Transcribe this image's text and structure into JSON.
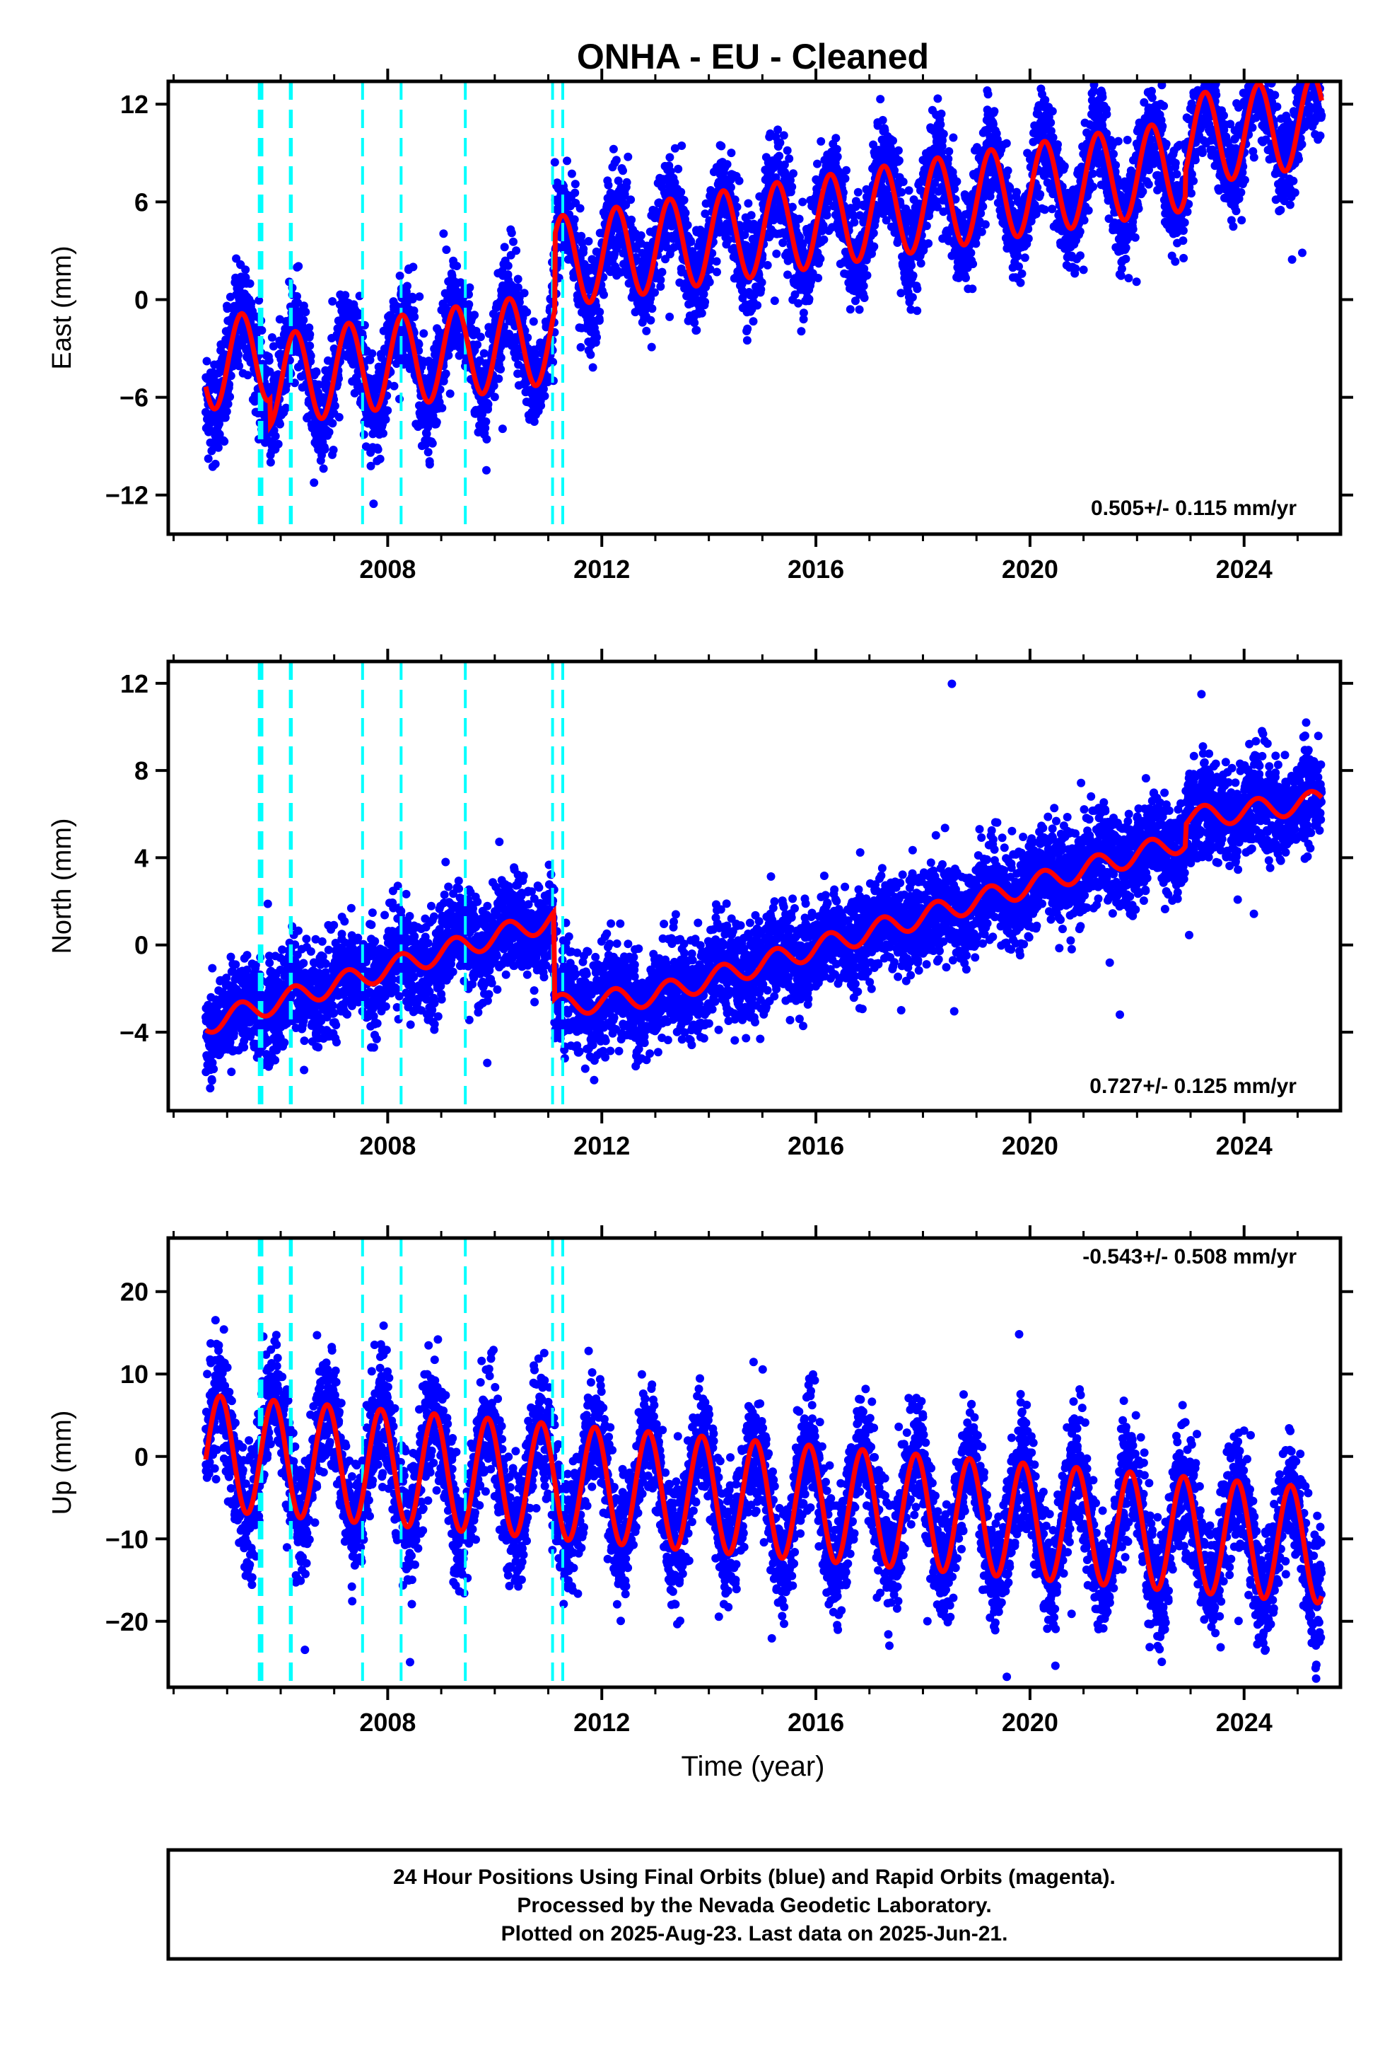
{
  "title": "ONHA  - EU - Cleaned",
  "x_axis_label": "Time (year)",
  "colors": {
    "final_orbits": "#0000ff",
    "rapid_orbits": "#ff00ff",
    "model_fit": "#ff0000",
    "event_lines": "#00ffff",
    "frame": "#000000"
  },
  "footer": {
    "line1": "24 Hour Positions Using Final Orbits (blue) and Rapid Orbits (magenta).",
    "line2": "Processed by the Nevada Geodetic Laboratory.",
    "line3": "Plotted on 2025-Aug-23. Last data on 2025-Jun-21."
  },
  "chart_data": [
    {
      "type": "scatter",
      "component": "east",
      "ylabel": "East (mm)",
      "rate_label": "0.505+/- 0.115 mm/yr",
      "xlim": [
        2003.9,
        2025.8
      ],
      "ylim": [
        -14.4,
        13.4
      ],
      "x_ticks": [
        2008,
        2012,
        2016,
        2020,
        2024
      ],
      "x_tick_labels": [
        "2008",
        "2012",
        "2016",
        "2020",
        "2024"
      ],
      "y_ticks": [
        -12,
        -6,
        0,
        6,
        12
      ],
      "y_tick_labels": [
        "−12",
        "−6",
        "0",
        "6",
        "12"
      ],
      "event_lines": [
        2005.6,
        2005.65,
        2006.18,
        2006.2,
        2007.53,
        2008.25,
        2009.45,
        2011.08,
        2011.27
      ],
      "model": {
        "offset_mm": -4.0,
        "trend_mm_per_yr": 0.505,
        "trend_ref_year": 2004.6,
        "annual_amplitude_mm": 2.8,
        "annual_phase_year": 0.02,
        "segments": [
          {
            "start": 2004.6,
            "end": 2005.8,
            "shift_mm": 0.0
          },
          {
            "start": 2005.8,
            "end": 2011.12,
            "shift_mm": -1.6
          },
          {
            "start": 2011.12,
            "end": 2025.45,
            "shift_mm": 3.0
          }
        ],
        "step_2022": {
          "year": 2022.9,
          "shift_mm": 1.5
        }
      },
      "scatter": {
        "sigma_mm": 1.5,
        "points_per_year": 300
      }
    },
    {
      "type": "scatter",
      "component": "north",
      "ylabel": "North (mm)",
      "rate_label": "0.727+/- 0.125 mm/yr",
      "xlim": [
        2003.9,
        2025.8
      ],
      "ylim": [
        -7.6,
        13.0
      ],
      "x_ticks": [
        2008,
        2012,
        2016,
        2020,
        2024
      ],
      "x_tick_labels": [
        "2008",
        "2012",
        "2016",
        "2020",
        "2024"
      ],
      "y_ticks": [
        -4,
        0,
        4,
        8,
        12
      ],
      "y_tick_labels": [
        "−4",
        "0",
        "4",
        "8",
        "12"
      ],
      "event_lines": [
        2005.6,
        2005.65,
        2006.18,
        2006.2,
        2007.53,
        2008.25,
        2009.45,
        2011.08,
        2011.27
      ],
      "model": {
        "knots": [
          [
            2004.6,
            -3.6
          ],
          [
            2011.1,
            1.2
          ],
          [
            2011.12,
            -2.8
          ],
          [
            2013.0,
            -2.3
          ],
          [
            2017.0,
            0.6
          ],
          [
            2022.9,
            4.8
          ],
          [
            2022.92,
            5.8
          ],
          [
            2025.45,
            6.6
          ]
        ],
        "annual_amplitude_mm": 0.5
      },
      "scatter": {
        "sigma_mm": 1.1,
        "points_per_year": 300
      }
    },
    {
      "type": "scatter",
      "component": "up",
      "ylabel": "Up (mm)",
      "rate_label": "-0.543+/- 0.508 mm/yr",
      "xlim": [
        2003.9,
        2025.8
      ],
      "ylim": [
        -28.0,
        26.5
      ],
      "x_ticks": [
        2008,
        2012,
        2016,
        2020,
        2024
      ],
      "x_tick_labels": [
        "2008",
        "2012",
        "2016",
        "2020",
        "2024"
      ],
      "y_ticks": [
        -20,
        -10,
        0,
        10,
        20
      ],
      "y_tick_labels": [
        "−20",
        "−10",
        "0",
        "10",
        "20"
      ],
      "event_lines": [
        2005.6,
        2005.65,
        2006.18,
        2006.2,
        2007.53,
        2008.25,
        2009.45,
        2011.08,
        2011.27
      ],
      "model": {
        "offset_mm": 0.5,
        "trend_mm_per_yr": -0.543,
        "trend_ref_year": 2004.6,
        "annual_amplitude_mm": 7.0,
        "annual_phase_year": 0.62,
        "segments": [
          {
            "start": 2004.6,
            "end": 2025.45,
            "shift_mm": 0.0
          }
        ]
      },
      "scatter": {
        "sigma_mm": 3.5,
        "points_per_year": 300
      }
    }
  ]
}
